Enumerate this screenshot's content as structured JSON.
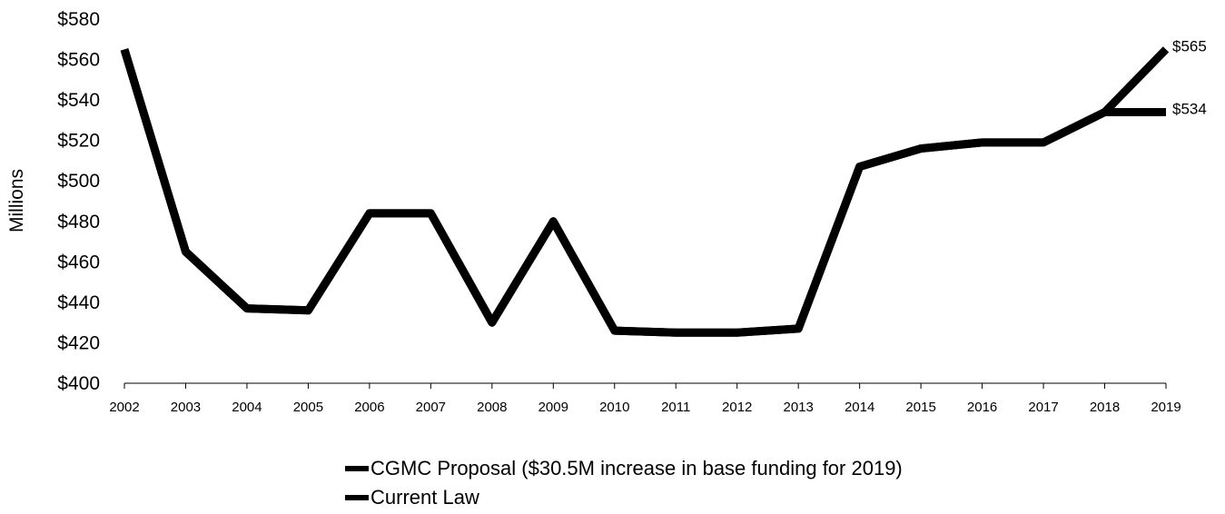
{
  "chart_data": {
    "type": "line",
    "title": "",
    "xlabel": "",
    "ylabel": "Millions",
    "ylim": [
      400,
      580
    ],
    "y_ticks": [
      400,
      420,
      440,
      460,
      480,
      500,
      520,
      540,
      560,
      580
    ],
    "y_tick_labels": [
      "$400",
      "$420",
      "$440",
      "$460",
      "$480",
      "$500",
      "$520",
      "$540",
      "$560",
      "$580"
    ],
    "x": [
      "2002",
      "2003",
      "2004",
      "2005",
      "2006",
      "2007",
      "2008",
      "2009",
      "2010",
      "2011",
      "2012",
      "2013",
      "2014",
      "2015",
      "2016",
      "2017",
      "2018",
      "2019"
    ],
    "series": [
      {
        "name": "CGMC Proposal ($30.5M increase in base funding for 2019)",
        "color": "#000000",
        "values": [
          565,
          465,
          437,
          436,
          484,
          484,
          430,
          480,
          426,
          425,
          425,
          427,
          507,
          516,
          519,
          519,
          534,
          565
        ]
      },
      {
        "name": "Current Law",
        "color": "#000000",
        "values": [
          565,
          465,
          437,
          436,
          484,
          484,
          430,
          480,
          426,
          425,
          425,
          427,
          507,
          516,
          519,
          519,
          534,
          534
        ]
      }
    ],
    "annotations": [
      {
        "series": 0,
        "index": 17,
        "text": "$565"
      },
      {
        "series": 1,
        "index": 17,
        "text": "$534"
      }
    ],
    "grid": false,
    "legend_position": "bottom"
  }
}
